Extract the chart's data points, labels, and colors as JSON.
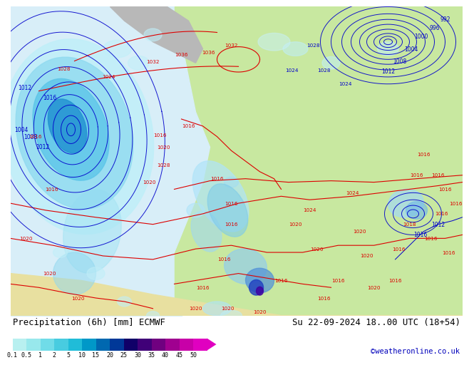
{
  "title_left": "Precipitation (6h) [mm] ECMWF",
  "title_right": "Su 22-09-2024 18..00 UTC (18+54)",
  "credit": "©weatheronline.co.uk",
  "colorbar_labels": [
    "0.1",
    "0.5",
    "1",
    "2",
    "5",
    "10",
    "15",
    "20",
    "25",
    "30",
    "35",
    "40",
    "45",
    "50"
  ],
  "colorbar_colors": [
    "#b8f0f0",
    "#98e8ec",
    "#70dce8",
    "#48cce0",
    "#20bcd8",
    "#0098c8",
    "#0068b0",
    "#003898",
    "#100068",
    "#400078",
    "#700080",
    "#a00090",
    "#c800a8",
    "#e000c0"
  ],
  "ocean_color": "#d8eef8",
  "land_color": "#c8e8a0",
  "mountain_color": "#c8c8c8",
  "atlantic_color": "#ddeef8",
  "text_color": "#000000",
  "credit_color": "#0000bb",
  "isobar_red": "#ff0000",
  "isobar_blue": "#0000ff",
  "prec_cyan1": "#b8eef8",
  "prec_cyan2": "#80d8f0",
  "prec_blue1": "#40b0e0",
  "prec_blue2": "#1880c0",
  "prec_dkblue": "#0040a0",
  "prec_purple": "#6000a0",
  "prec_magenta": "#c000c0"
}
